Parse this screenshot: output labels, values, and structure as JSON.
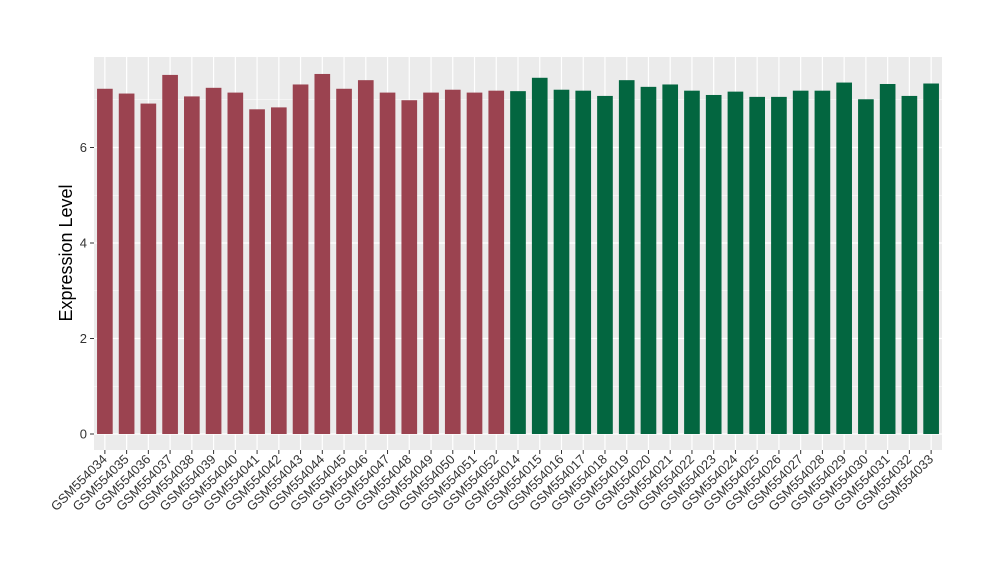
{
  "chart_data": {
    "type": "bar",
    "title": "",
    "xlabel": "",
    "ylabel": "Expression Level",
    "ylim": [
      0,
      8
    ],
    "yticks": [
      0,
      2,
      4,
      6
    ],
    "grid": true,
    "legend": "none",
    "colors": {
      "group1": "#9b4350",
      "group2": "#036640",
      "panel": "#ebebeb",
      "grid": "#ffffff"
    },
    "categories": [
      "GSM554034",
      "GSM554035",
      "GSM554036",
      "GSM554037",
      "GSM554038",
      "GSM554039",
      "GSM554040",
      "GSM554041",
      "GSM554042",
      "GSM554043",
      "GSM554044",
      "GSM554045",
      "GSM554046",
      "GSM554047",
      "GSM554048",
      "GSM554049",
      "GSM554050",
      "GSM554051",
      "GSM554052",
      "GSM554014",
      "GSM554015",
      "GSM554016",
      "GSM554017",
      "GSM554018",
      "GSM554019",
      "GSM554020",
      "GSM554021",
      "GSM554022",
      "GSM554023",
      "GSM554024",
      "GSM554025",
      "GSM554026",
      "GSM554027",
      "GSM554028",
      "GSM554029",
      "GSM554030",
      "GSM554031",
      "GSM554032",
      "GSM554033"
    ],
    "values": [
      7.23,
      7.13,
      6.92,
      7.52,
      7.07,
      7.25,
      7.15,
      6.8,
      6.84,
      7.32,
      7.54,
      7.23,
      7.41,
      7.15,
      6.99,
      7.15,
      7.21,
      7.15,
      7.19,
      7.18,
      7.46,
      7.21,
      7.19,
      7.08,
      7.41,
      7.27,
      7.32,
      7.19,
      7.1,
      7.17,
      7.06,
      7.06,
      7.19,
      7.19,
      7.36,
      7.01,
      7.33,
      7.08,
      7.34
    ],
    "groups": [
      1,
      1,
      1,
      1,
      1,
      1,
      1,
      1,
      1,
      1,
      1,
      1,
      1,
      1,
      1,
      1,
      1,
      1,
      1,
      2,
      2,
      2,
      2,
      2,
      2,
      2,
      2,
      2,
      2,
      2,
      2,
      2,
      2,
      2,
      2,
      2,
      2,
      2,
      2
    ]
  }
}
